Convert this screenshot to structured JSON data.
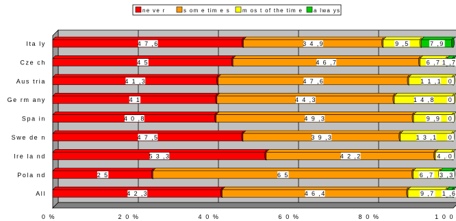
{
  "chart_data": {
    "type": "bar",
    "orientation": "horizontal",
    "stacked": true,
    "percent_stacked": true,
    "categories": [
      "Italy",
      "Czech",
      "Austria",
      "Germany",
      "Spain",
      "Sweden",
      "Ireland",
      "Poland",
      "All"
    ],
    "category_labels": [
      "Ita ly",
      "Cze ch",
      "Aus tria",
      "Ge rm any",
      "Spa in",
      "Swe de n",
      "Ire la nd",
      "Pola nd",
      "All"
    ],
    "series": [
      {
        "name": "never",
        "color": "#ff0000",
        "values": [
          47.6,
          45,
          41.3,
          41,
          40.8,
          47.5,
          53.3,
          25,
          42.3
        ]
      },
      {
        "name": "sometimes",
        "color": "#ff9900",
        "values": [
          34.9,
          46.7,
          47.6,
          44.3,
          49.3,
          39.3,
          42.2,
          65,
          46.4
        ]
      },
      {
        "name": "most of the time",
        "color": "#ffff00",
        "values": [
          9.5,
          6.7,
          11.1,
          14.8,
          9.9,
          13.1,
          4.4,
          6.7,
          9.7
        ]
      },
      {
        "name": "always",
        "color": "#00cc00",
        "values": [
          7.9,
          1.7,
          0,
          0,
          0,
          0,
          0,
          3.3,
          1.6
        ]
      }
    ],
    "data_labels": [
      [
        "4 7 ,6",
        "3 4 ,9",
        "9 ,5",
        "7 ,9"
      ],
      [
        "4 5",
        "4 6 ,7",
        "6 ,7",
        "1 ,7"
      ],
      [
        "4 1 ,3",
        "4 7 ,6",
        "1 1 ,1",
        "0"
      ],
      [
        "4 1",
        "4 4 ,3",
        "1 4 ,8",
        "0"
      ],
      [
        "4 0 ,8",
        "4 9 ,3",
        "9 ,9",
        "0"
      ],
      [
        "4 7 ,5",
        "3 9 ,3",
        "1 3 ,1",
        "0"
      ],
      [
        "5 3 ,3",
        "4 2 ,2",
        "4 ,4",
        "0"
      ],
      [
        "2 5",
        "6 5",
        "6 ,7",
        "3 ,3"
      ],
      [
        "4 2 ,3",
        "4 6 ,4",
        "9 ,7",
        "1 ,6"
      ]
    ],
    "legend_labels": [
      "ne ve r",
      "s om e tim e s",
      "m os t of the tim e",
      "a lwa ys"
    ],
    "x_ticks": [
      "0 %",
      "2 0 %",
      "4 0 %",
      "6 0 %",
      "8 0 %",
      "1 0 0 %"
    ],
    "xlim": [
      0,
      100
    ],
    "grid": true,
    "legend_position": "top"
  }
}
